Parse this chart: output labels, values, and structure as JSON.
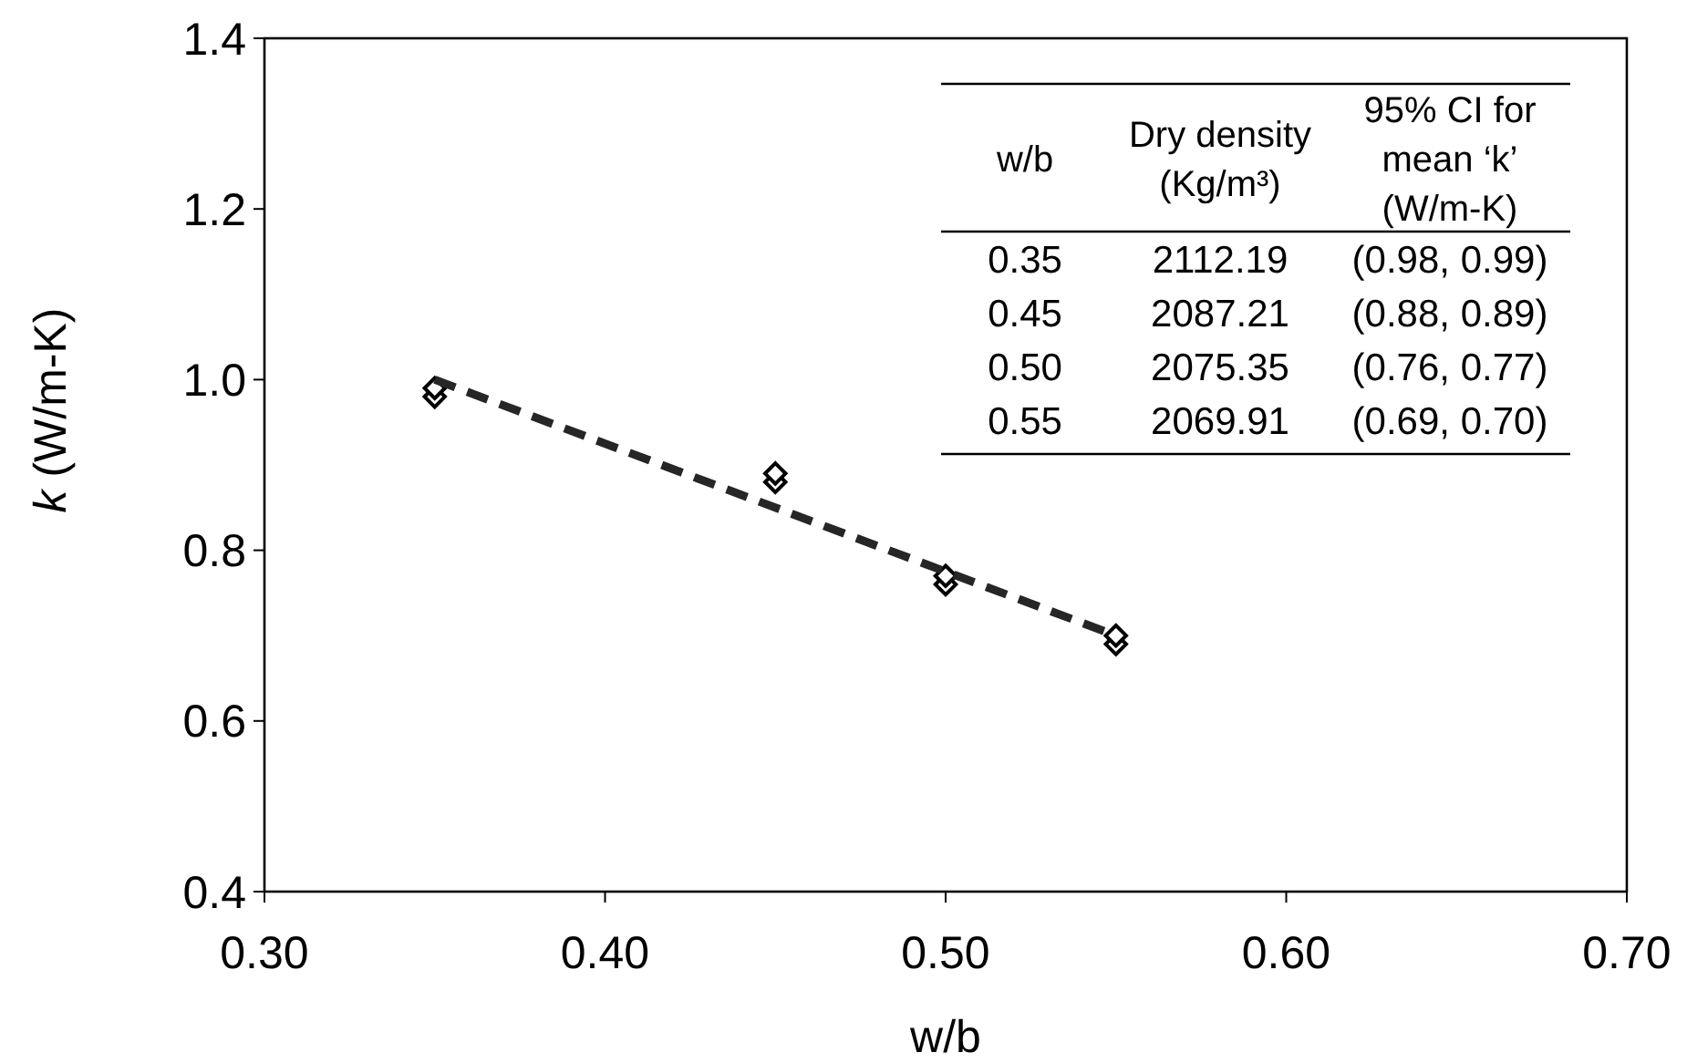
{
  "chart_data": {
    "type": "scatter",
    "xlabel": "w/b",
    "ylabel": "k (W/m-K)",
    "xlim": [
      0.3,
      0.7
    ],
    "xticks": [
      {
        "value": 0.3,
        "label": "0.30"
      },
      {
        "value": 0.4,
        "label": "0.40"
      },
      {
        "value": 0.5,
        "label": "0.50"
      },
      {
        "value": 0.6,
        "label": "0.60"
      },
      {
        "value": 0.7,
        "label": "0.70"
      }
    ],
    "ylim": [
      0.4,
      1.4
    ],
    "yticks": [
      {
        "value": 0.4,
        "label": "0.4"
      },
      {
        "value": 0.6,
        "label": "0.6"
      },
      {
        "value": 0.8,
        "label": "0.8"
      },
      {
        "value": 1.0,
        "label": "1.0"
      },
      {
        "value": 1.2,
        "label": "1.2"
      },
      {
        "value": 1.4,
        "label": "1.4"
      }
    ],
    "grid": false,
    "series": [
      {
        "color": "#000000",
        "marker": "diamond",
        "x": [
          0.35,
          0.35,
          0.45,
          0.45,
          0.5,
          0.5,
          0.55,
          0.55
        ],
        "values": [
          0.98,
          0.99,
          0.88,
          0.89,
          0.76,
          0.77,
          0.69,
          0.7
        ]
      },
      {
        "type": "line",
        "color": "#262626",
        "line_style": "dashed",
        "x": [
          0.35,
          0.55
        ],
        "values": [
          1.0,
          0.7
        ]
      }
    ],
    "annotations": [
      "w/b",
      "Dry density (Kg/m³)",
      "95% CI for mean ‘k’ (W/m-K)",
      "0.35",
      "2112.19",
      "(0.98, 0.99)",
      "0.45",
      "2087.21",
      "(0.88, 0.89)",
      "0.50",
      "2075.35",
      "(0.76, 0.77)",
      "0.55",
      "2069.91",
      "(0.69, 0.70)"
    ]
  }
}
